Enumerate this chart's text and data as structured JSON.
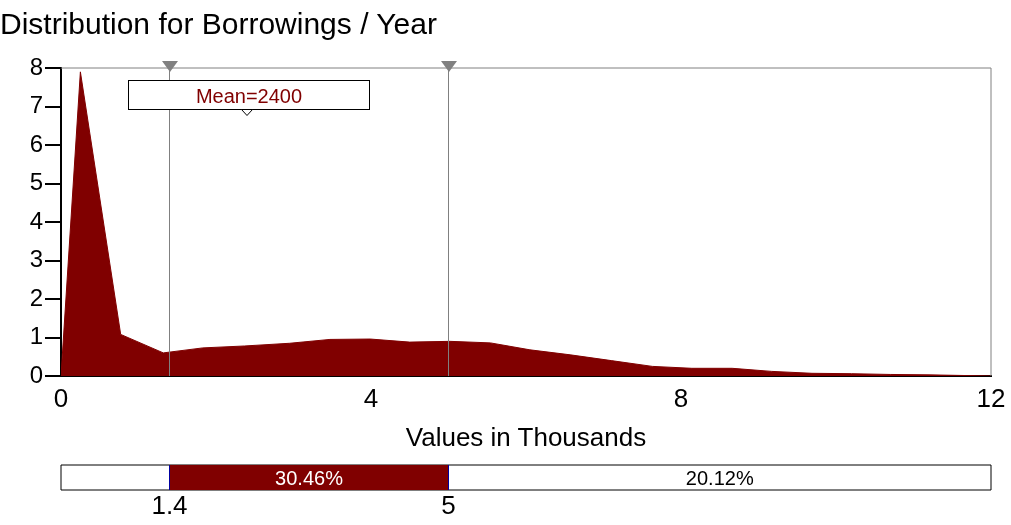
{
  "chart_data": {
    "type": "area",
    "title": "Distribution for Borrowings / Year",
    "xlabel": "Values in Thousands",
    "x": [
      0,
      0.25,
      0.77,
      1.32,
      1.83,
      2.37,
      2.95,
      3.47,
      3.99,
      4.5,
      5.02,
      5.54,
      6.05,
      6.57,
      7.1,
      7.63,
      8.14,
      8.66,
      9.17,
      9.69,
      10.2,
      10.7,
      11.2,
      12
    ],
    "series": [
      {
        "color": "#800000",
        "values": [
          0,
          7.9,
          1.08,
          0.6,
          0.73,
          0.78,
          0.85,
          0.95,
          0.96,
          0.88,
          0.9,
          0.86,
          0.68,
          0.55,
          0.4,
          0.25,
          0.2,
          0.2,
          0.12,
          0.07,
          0.06,
          0.04,
          0.03,
          0
        ]
      }
    ],
    "xlim": [
      0,
      12
    ],
    "xticks": [
      0,
      4,
      8,
      12
    ],
    "ylim": [
      0,
      8
    ],
    "yticks": [
      0,
      1,
      2,
      3,
      4,
      5,
      6,
      7,
      8
    ],
    "ref_lines": [
      {
        "axis": "x",
        "value": 1.4,
        "color": "#808080"
      },
      {
        "axis": "x",
        "value": 5,
        "color": "#808080"
      }
    ],
    "annotations": [
      "Mean=2400",
      "30.46%",
      "20.12%",
      "1.4",
      "5"
    ],
    "grid": false,
    "legend": false,
    "marker": "none"
  }
}
